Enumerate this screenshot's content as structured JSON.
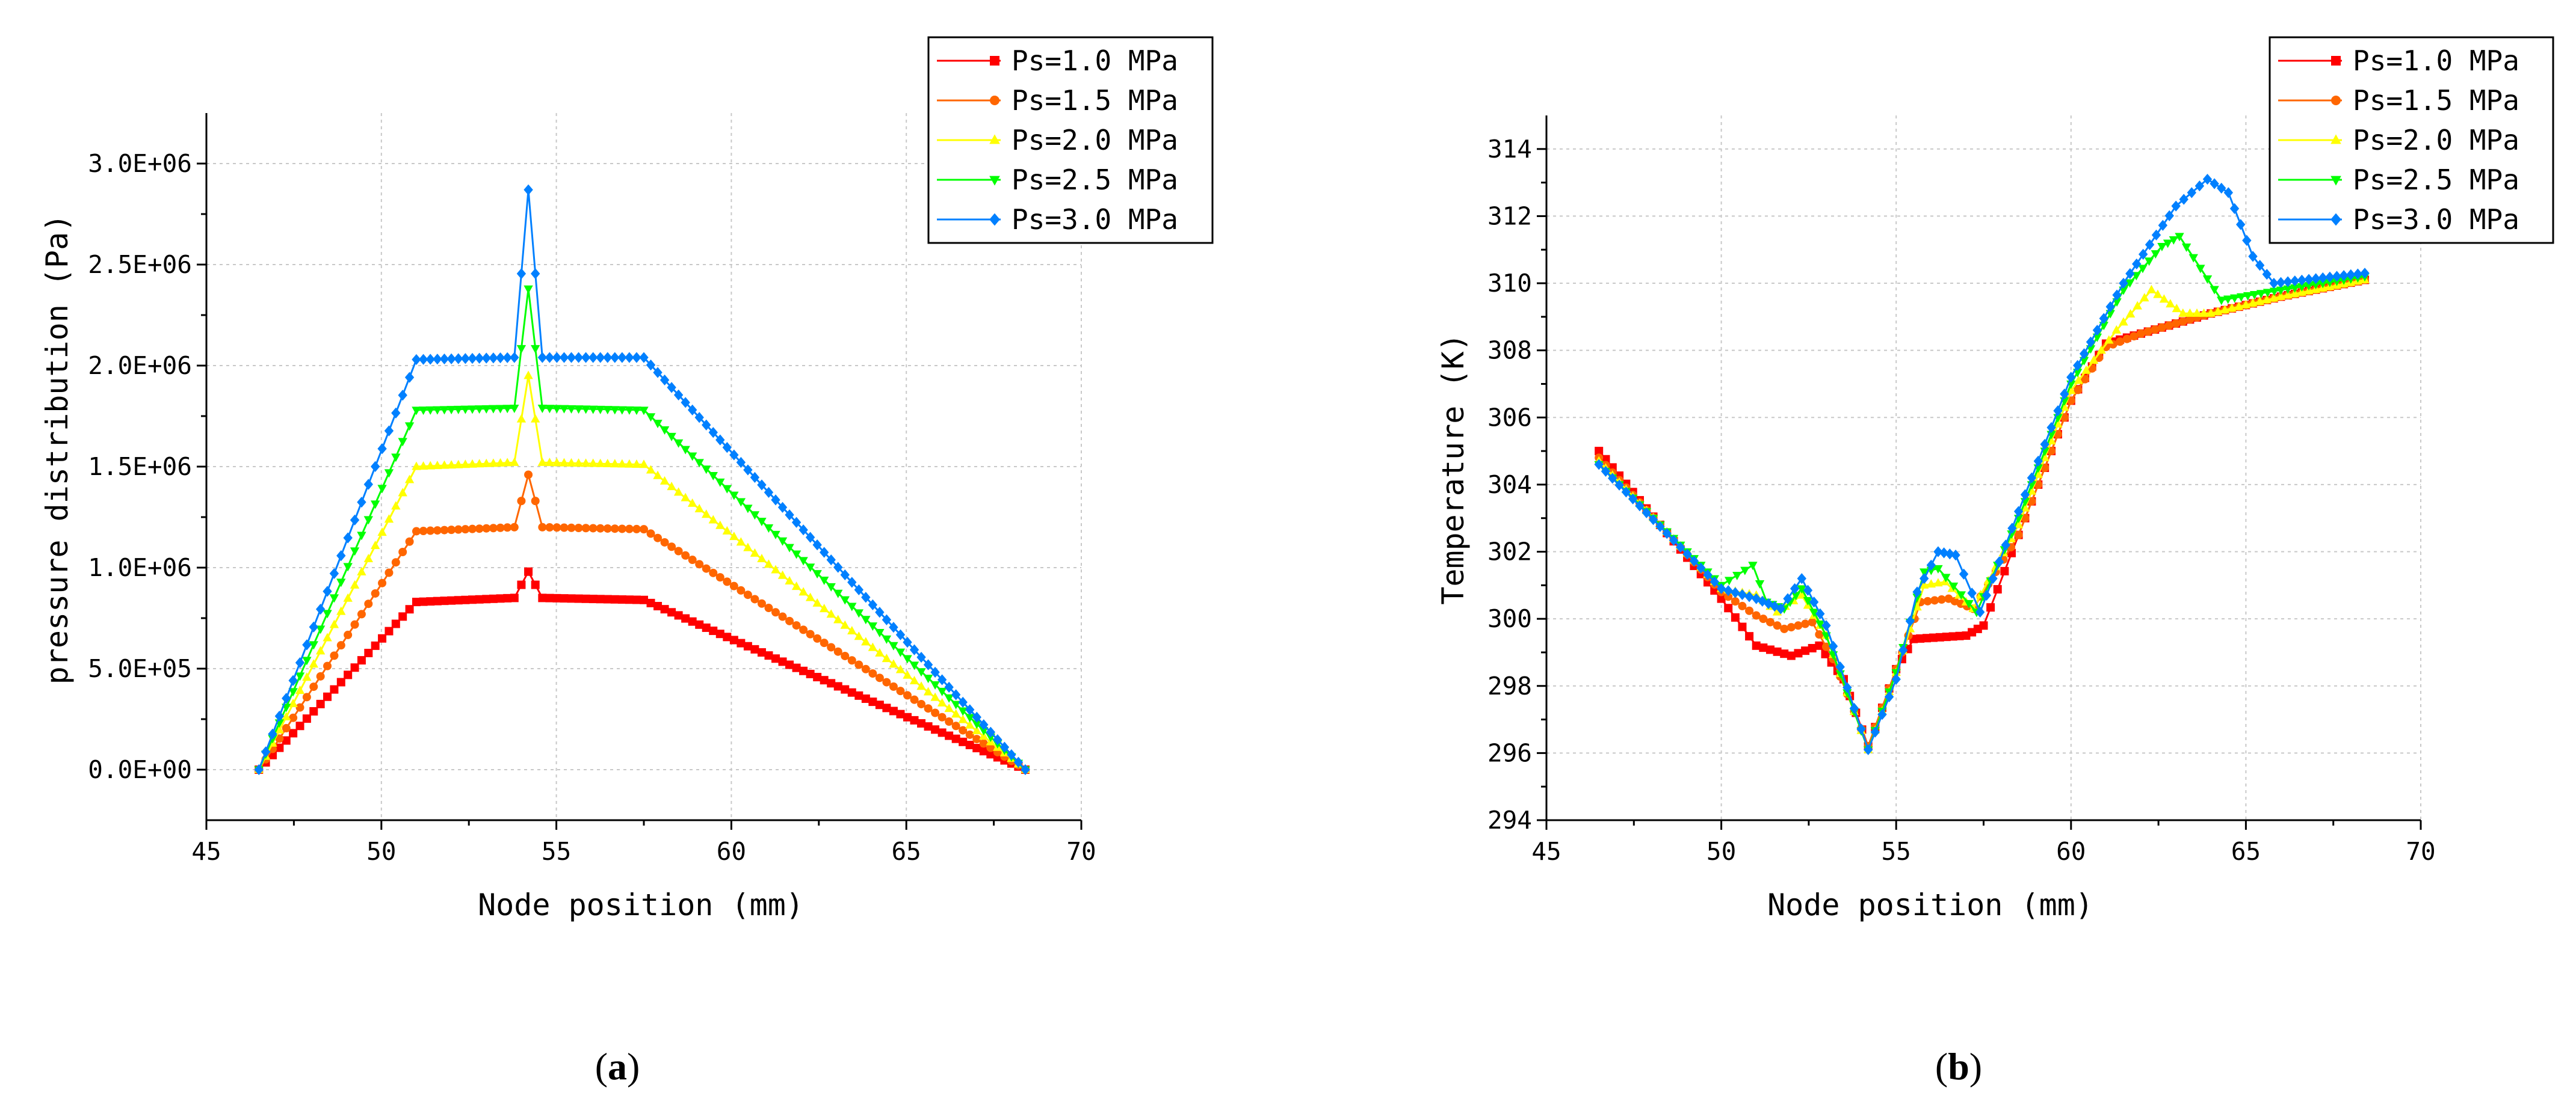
{
  "charts": [
    {
      "caption": "a",
      "chart_data": {
        "type": "line",
        "xlabel": "Node position (mm)",
        "ylabel": "pressure distribution (Pa)",
        "xlim": [
          45,
          70
        ],
        "ylim": [
          -250000,
          3250000
        ],
        "xticks": [
          45,
          50,
          55,
          60,
          65,
          70
        ],
        "xtick_labels": [
          "45",
          "50",
          "55",
          "60",
          "65",
          "70"
        ],
        "yticks": [
          0,
          500000,
          1000000,
          1500000,
          2000000,
          2500000,
          3000000
        ],
        "ytick_labels": [
          "0.0E+00",
          "5.0E+05",
          "1.0E+06",
          "1.5E+06",
          "2.0E+06",
          "2.5E+06",
          "3.0E+06"
        ],
        "legend_position": "top-right",
        "series": [
          {
            "name": "Ps=1.0 MPa",
            "color": "#ff0000",
            "marker": "square",
            "points": [
              [
                46.5,
                0
              ],
              [
                51,
                830000
              ],
              [
                53.8,
                850000
              ],
              [
                54.2,
                980000
              ],
              [
                54.6,
                850000
              ],
              [
                57.5,
                840000
              ],
              [
                68.4,
                0
              ]
            ]
          },
          {
            "name": "Ps=1.5 MPa",
            "color": "#ff6600",
            "marker": "circle",
            "points": [
              [
                46.5,
                0
              ],
              [
                51,
                1180000
              ],
              [
                53.8,
                1200000
              ],
              [
                54.2,
                1460000
              ],
              [
                54.6,
                1200000
              ],
              [
                57.5,
                1190000
              ],
              [
                68.4,
                0
              ]
            ]
          },
          {
            "name": "Ps=2.0 MPa",
            "color": "#ffff00",
            "marker": "triangle-up",
            "points": [
              [
                46.5,
                0
              ],
              [
                51,
                1500000
              ],
              [
                53.8,
                1520000
              ],
              [
                54.2,
                1950000
              ],
              [
                54.6,
                1520000
              ],
              [
                57.5,
                1510000
              ],
              [
                68.4,
                0
              ]
            ]
          },
          {
            "name": "Ps=2.5 MPa",
            "color": "#00ff00",
            "marker": "triangle-down",
            "points": [
              [
                46.5,
                0
              ],
              [
                51,
                1780000
              ],
              [
                53.8,
                1790000
              ],
              [
                54.2,
                2380000
              ],
              [
                54.6,
                1790000
              ],
              [
                57.5,
                1780000
              ],
              [
                68.4,
                0
              ]
            ]
          },
          {
            "name": "Ps=3.0 MPa",
            "color": "#0080ff",
            "marker": "diamond",
            "points": [
              [
                46.5,
                0
              ],
              [
                51,
                2030000
              ],
              [
                53.8,
                2040000
              ],
              [
                54.2,
                2870000
              ],
              [
                54.6,
                2040000
              ],
              [
                57.5,
                2040000
              ],
              [
                68.4,
                0
              ]
            ]
          }
        ]
      }
    },
    {
      "caption": "b",
      "chart_data": {
        "type": "line",
        "xlabel": "Node position (mm)",
        "ylabel": "Temperature (K)",
        "xlim": [
          45,
          70
        ],
        "ylim": [
          294,
          315
        ],
        "xticks": [
          45,
          50,
          55,
          60,
          65,
          70
        ],
        "xtick_labels": [
          "45",
          "50",
          "55",
          "60",
          "65",
          "70"
        ],
        "yticks": [
          294,
          296,
          298,
          300,
          302,
          304,
          306,
          308,
          310,
          312,
          314
        ],
        "ytick_labels": [
          "294",
          "296",
          "298",
          "300",
          "302",
          "304",
          "306",
          "308",
          "310",
          "312",
          "314"
        ],
        "legend_position": "top-right",
        "series": [
          {
            "name": "Ps=1.0 MPa",
            "color": "#ff0000",
            "marker": "square",
            "points": [
              [
                46.5,
                305
              ],
              [
                50,
                300.6
              ],
              [
                51,
                299.2
              ],
              [
                52,
                298.9
              ],
              [
                52.8,
                299.2
              ],
              [
                53.5,
                298.2
              ],
              [
                54.2,
                296.2
              ],
              [
                55,
                298.5
              ],
              [
                55.5,
                299.4
              ],
              [
                57,
                299.5
              ],
              [
                57.5,
                299.8
              ],
              [
                58.5,
                302.5
              ],
              [
                60,
                306.5
              ],
              [
                61,
                308.2
              ],
              [
                62,
                308.5
              ],
              [
                64,
                309.1
              ],
              [
                66,
                309.6
              ],
              [
                68.4,
                310.1
              ]
            ]
          },
          {
            "name": "Ps=1.5 MPa",
            "color": "#ff6600",
            "marker": "circle",
            "points": [
              [
                46.5,
                304.8
              ],
              [
                50,
                300.8
              ],
              [
                51,
                300.1
              ],
              [
                51.8,
                299.7
              ],
              [
                52.6,
                299.9
              ],
              [
                53.2,
                298.8
              ],
              [
                54.2,
                296.2
              ],
              [
                55,
                298.5
              ],
              [
                55.7,
                300.5
              ],
              [
                56.5,
                300.6
              ],
              [
                57.2,
                300.3
              ],
              [
                58.5,
                302.5
              ],
              [
                60,
                306.5
              ],
              [
                61,
                308.1
              ],
              [
                62,
                308.5
              ],
              [
                64,
                309.1
              ],
              [
                66,
                309.6
              ],
              [
                68.4,
                310.1
              ]
            ]
          },
          {
            "name": "Ps=2.0 MPa",
            "color": "#ffff00",
            "marker": "triangle-up",
            "points": [
              [
                46.5,
                304.7
              ],
              [
                50,
                300.9
              ],
              [
                51,
                300.7
              ],
              [
                51.6,
                300.2
              ],
              [
                52.3,
                300.7
              ],
              [
                53,
                299.5
              ],
              [
                54.2,
                296.1
              ],
              [
                55,
                298.4
              ],
              [
                55.8,
                301
              ],
              [
                56.4,
                301.1
              ],
              [
                57.2,
                300.3
              ],
              [
                58.5,
                302.8
              ],
              [
                60,
                306.8
              ],
              [
                61.3,
                308.6
              ],
              [
                62.3,
                309.8
              ],
              [
                63.2,
                309.1
              ],
              [
                64,
                309.1
              ],
              [
                66,
                309.6
              ],
              [
                68.4,
                310.1
              ]
            ]
          },
          {
            "name": "Ps=2.5 MPa",
            "color": "#00ff00",
            "marker": "triangle-down",
            "points": [
              [
                46.5,
                304.6
              ],
              [
                50,
                301
              ],
              [
                50.9,
                301.6
              ],
              [
                51.3,
                300.5
              ],
              [
                51.8,
                300.3
              ],
              [
                52.3,
                300.9
              ],
              [
                53,
                299.5
              ],
              [
                54.2,
                296.1
              ],
              [
                55,
                298.4
              ],
              [
                55.8,
                301.4
              ],
              [
                56.2,
                301.5
              ],
              [
                57.3,
                300.2
              ],
              [
                58.5,
                303
              ],
              [
                60,
                307
              ],
              [
                61.5,
                309.8
              ],
              [
                62.6,
                311.1
              ],
              [
                63.1,
                311.4
              ],
              [
                64.3,
                309.5
              ],
              [
                66,
                309.8
              ],
              [
                68.4,
                310.2
              ]
            ]
          },
          {
            "name": "Ps=3.0 MPa",
            "color": "#0080ff",
            "marker": "diamond",
            "points": [
              [
                46.5,
                304.6
              ],
              [
                50,
                300.9
              ],
              [
                51,
                300.6
              ],
              [
                51.7,
                300.3
              ],
              [
                52.3,
                301.2
              ],
              [
                53,
                299.8
              ],
              [
                54.2,
                296.1
              ],
              [
                55,
                298.2
              ],
              [
                55.6,
                300.8
              ],
              [
                56.2,
                302
              ],
              [
                56.7,
                301.9
              ],
              [
                57.4,
                300.2
              ],
              [
                58.5,
                303.2
              ],
              [
                60,
                307.2
              ],
              [
                61.5,
                310
              ],
              [
                63,
                312.3
              ],
              [
                63.9,
                313.1
              ],
              [
                64.5,
                312.7
              ],
              [
                65.2,
                310.8
              ],
              [
                65.8,
                310
              ],
              [
                68.4,
                310.3
              ]
            ]
          }
        ]
      }
    }
  ]
}
